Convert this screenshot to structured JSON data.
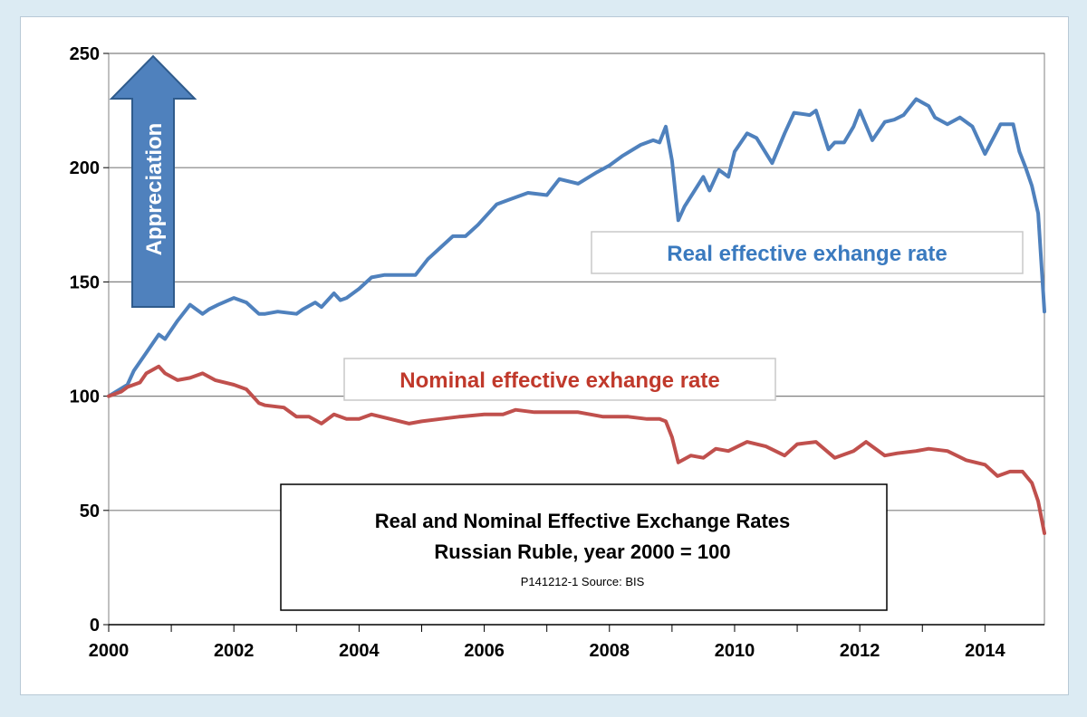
{
  "chart_data": {
    "type": "line",
    "title": "Real and Nominal Effective Exchange Rates",
    "subtitle": "Russian Ruble, year 2000  = 100",
    "source": "P141212-1 Source: BIS",
    "xlabel": "",
    "ylabel": "",
    "xlim": [
      2000,
      2014.95
    ],
    "ylim": [
      0,
      250
    ],
    "y_ticks": [
      0,
      50,
      100,
      150,
      200,
      250
    ],
    "x_ticks": [
      2000,
      2002,
      2004,
      2006,
      2008,
      2010,
      2012,
      2014
    ],
    "x_tick_labels": [
      "2000",
      "2002",
      "2004",
      "2006",
      "2008",
      "2010",
      "2012",
      "2014"
    ],
    "grid": "horizontal",
    "annotation": "Appreciation",
    "series": [
      {
        "name": "Real effective exhange rate",
        "color": "#4f81bd",
        "x": [
          2000.0,
          2000.3,
          2000.4,
          2000.5,
          2000.6,
          2000.8,
          2000.9,
          2001.1,
          2001.3,
          2001.5,
          2001.6,
          2001.75,
          2002.0,
          2002.2,
          2002.4,
          2002.5,
          2002.7,
          2003.0,
          2003.1,
          2003.3,
          2003.4,
          2003.6,
          2003.7,
          2003.8,
          2004.0,
          2004.2,
          2004.4,
          2004.7,
          2004.9,
          2005.1,
          2005.3,
          2005.5,
          2005.7,
          2005.9,
          2006.0,
          2006.2,
          2006.4,
          2006.5,
          2006.7,
          2007.0,
          2007.2,
          2007.5,
          2007.8,
          2008.0,
          2008.2,
          2008.5,
          2008.7,
          2008.8,
          2008.9,
          2009.0,
          2009.1,
          2009.2,
          2009.5,
          2009.6,
          2009.75,
          2009.9,
          2010.0,
          2010.2,
          2010.35,
          2010.6,
          2010.8,
          2010.95,
          2011.2,
          2011.3,
          2011.5,
          2011.6,
          2011.75,
          2011.9,
          2012.0,
          2012.2,
          2012.4,
          2012.55,
          2012.7,
          2012.9,
          2013.1,
          2013.2,
          2013.4,
          2013.6,
          2013.8,
          2014.0,
          2014.25,
          2014.45,
          2014.55,
          2014.65,
          2014.75,
          2014.85,
          2014.95
        ],
        "values": [
          100,
          105,
          111,
          115,
          119,
          127,
          125,
          133,
          140,
          136,
          138,
          140,
          143,
          141,
          136,
          136,
          137,
          136,
          138,
          141,
          139,
          145,
          142,
          143,
          147,
          152,
          153,
          153,
          153,
          160,
          165,
          170,
          170,
          175,
          178,
          184,
          186,
          187,
          189,
          188,
          195,
          193,
          198,
          201,
          205,
          210,
          212,
          211,
          218,
          203,
          177,
          183,
          196,
          190,
          199,
          196,
          207,
          215,
          213,
          202,
          215,
          224,
          223,
          225,
          208,
          211,
          211,
          218,
          225,
          212,
          220,
          221,
          223,
          230,
          227,
          222,
          219,
          222,
          218,
          206,
          219,
          219,
          207,
          200,
          192,
          180,
          137
        ]
      },
      {
        "name": "Nominal effective exhange rate",
        "color": "#c0504d",
        "x": [
          2000.0,
          2000.2,
          2000.3,
          2000.5,
          2000.6,
          2000.8,
          2000.9,
          2001.1,
          2001.3,
          2001.5,
          2001.7,
          2002.0,
          2002.2,
          2002.4,
          2002.5,
          2002.8,
          2003.0,
          2003.2,
          2003.4,
          2003.6,
          2003.8,
          2004.0,
          2004.2,
          2004.5,
          2004.8,
          2005.0,
          2005.3,
          2005.6,
          2006.0,
          2006.3,
          2006.5,
          2006.8,
          2007.0,
          2007.5,
          2007.9,
          2008.3,
          2008.6,
          2008.8,
          2008.9,
          2009.0,
          2009.1,
          2009.3,
          2009.5,
          2009.7,
          2009.9,
          2010.2,
          2010.5,
          2010.8,
          2011.0,
          2011.3,
          2011.6,
          2011.9,
          2012.1,
          2012.4,
          2012.6,
          2012.9,
          2013.1,
          2013.4,
          2013.7,
          2014.0,
          2014.2,
          2014.4,
          2014.6,
          2014.75,
          2014.85,
          2014.95
        ],
        "values": [
          100,
          102,
          104,
          106,
          110,
          113,
          110,
          107,
          108,
          110,
          107,
          105,
          103,
          97,
          96,
          95,
          91,
          91,
          88,
          92,
          90,
          90,
          92,
          90,
          88,
          89,
          90,
          91,
          92,
          92,
          94,
          93,
          93,
          93,
          91,
          91,
          90,
          90,
          89,
          82,
          71,
          74,
          73,
          77,
          76,
          80,
          78,
          74,
          79,
          80,
          73,
          76,
          80,
          74,
          75,
          76,
          77,
          76,
          72,
          70,
          65,
          67,
          67,
          62,
          54,
          40
        ]
      }
    ]
  }
}
